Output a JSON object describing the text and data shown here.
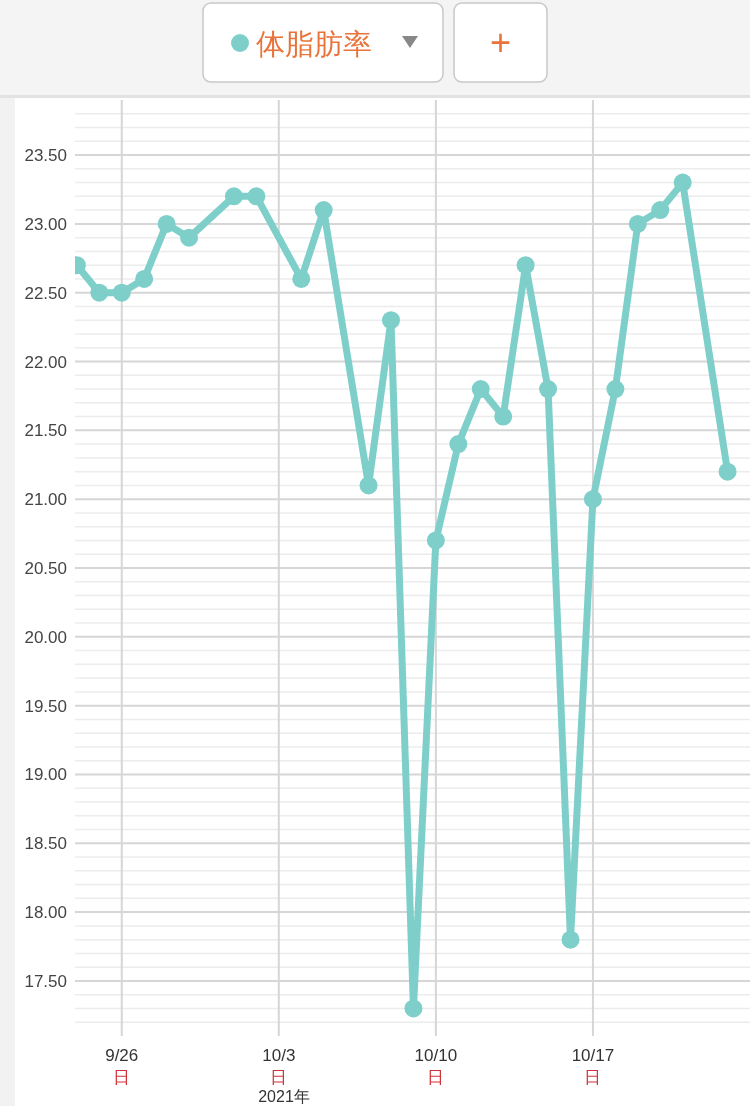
{
  "chart_data": {
    "type": "line",
    "legend": "top",
    "annotations": [
      "+"
    ],
    "xlabel": "2021年",
    "x": [
      "2021-09-24",
      "2021-09-25",
      "2021-09-26",
      "2021-09-27",
      "2021-09-28",
      "2021-09-29",
      "2021-10-01",
      "2021-10-02",
      "2021-10-04",
      "2021-10-05",
      "2021-10-07",
      "2021-10-08",
      "2021-10-09",
      "2021-10-10",
      "2021-10-11",
      "2021-10-12",
      "2021-10-13",
      "2021-10-14",
      "2021-10-15",
      "2021-10-16",
      "2021-10-17",
      "2021-10-18",
      "2021-10-19",
      "2021-10-20",
      "2021-10-21",
      "2021-10-23"
    ],
    "series": [
      {
        "name": "体脂肪率",
        "color": "#7ecfca",
        "values": [
          22.7,
          22.5,
          22.5,
          22.6,
          23.0,
          22.9,
          23.2,
          23.2,
          22.6,
          23.1,
          21.1,
          22.3,
          17.3,
          20.7,
          21.4,
          21.8,
          21.6,
          22.7,
          21.8,
          17.8,
          21.0,
          21.8,
          23.0,
          23.1,
          23.3,
          21.2
        ]
      }
    ],
    "marker": "circle",
    "grid": true,
    "xlim": [
      "2021-09-23T22:00",
      "2021-10-24T00:00"
    ],
    "xticks": [
      {
        "value": "2021-09-26",
        "label": "9/26\n日"
      },
      {
        "value": "2021-10-03",
        "label": "10/3\n日"
      },
      {
        "value": "2021-10-10",
        "label": "10/10\n日"
      },
      {
        "value": "2021-10-17",
        "label": "10/17\n日"
      }
    ],
    "ylim": [
      17.1,
      23.9
    ],
    "yticks": [
      {
        "value": 17.2,
        "label": null
      },
      {
        "value": 17.3,
        "label": null
      },
      {
        "value": 17.4,
        "label": null
      },
      {
        "value": 17.5,
        "label": "17.50"
      },
      {
        "value": 17.6,
        "label": null
      },
      {
        "value": 17.7,
        "label": null
      },
      {
        "value": 17.8,
        "label": null
      },
      {
        "value": 17.9,
        "label": null
      },
      {
        "value": 18.0,
        "label": "18.00"
      },
      {
        "value": 18.1,
        "label": null
      },
      {
        "value": 18.2,
        "label": null
      },
      {
        "value": 18.3,
        "label": null
      },
      {
        "value": 18.4,
        "label": null
      },
      {
        "value": 18.5,
        "label": "18.50"
      },
      {
        "value": 18.6,
        "label": null
      },
      {
        "value": 18.7,
        "label": null
      },
      {
        "value": 18.8,
        "label": null
      },
      {
        "value": 18.9,
        "label": null
      },
      {
        "value": 19.0,
        "label": "19.00"
      },
      {
        "value": 19.1,
        "label": null
      },
      {
        "value": 19.2,
        "label": null
      },
      {
        "value": 19.3,
        "label": null
      },
      {
        "value": 19.4,
        "label": null
      },
      {
        "value": 19.5,
        "label": "19.50"
      },
      {
        "value": 19.6,
        "label": null
      },
      {
        "value": 19.7,
        "label": null
      },
      {
        "value": 19.8,
        "label": null
      },
      {
        "value": 19.9,
        "label": null
      },
      {
        "value": 20.0,
        "label": "20.00"
      },
      {
        "value": 20.1,
        "label": null
      },
      {
        "value": 20.2,
        "label": null
      },
      {
        "value": 20.3,
        "label": null
      },
      {
        "value": 20.4,
        "label": null
      },
      {
        "value": 20.5,
        "label": "20.50"
      },
      {
        "value": 20.6,
        "label": null
      },
      {
        "value": 20.7,
        "label": null
      },
      {
        "value": 20.8,
        "label": null
      },
      {
        "value": 20.9,
        "label": null
      },
      {
        "value": 21.0,
        "label": "21.00"
      },
      {
        "value": 21.1,
        "label": null
      },
      {
        "value": 21.2,
        "label": null
      },
      {
        "value": 21.3,
        "label": null
      },
      {
        "value": 21.4,
        "label": null
      },
      {
        "value": 21.5,
        "label": "21.50"
      },
      {
        "value": 21.6,
        "label": null
      },
      {
        "value": 21.7,
        "label": null
      },
      {
        "value": 21.8,
        "label": null
      },
      {
        "value": 21.9,
        "label": null
      },
      {
        "value": 22.0,
        "label": "22.00"
      },
      {
        "value": 22.1,
        "label": null
      },
      {
        "value": 22.2,
        "label": null
      },
      {
        "value": 22.3,
        "label": null
      },
      {
        "value": 22.4,
        "label": null
      },
      {
        "value": 22.5,
        "label": "22.50"
      },
      {
        "value": 22.6,
        "label": null
      },
      {
        "value": 22.7,
        "label": null
      },
      {
        "value": 22.8,
        "label": null
      },
      {
        "value": 22.9,
        "label": null
      },
      {
        "value": 23.0,
        "label": "23.00"
      },
      {
        "value": 23.1,
        "label": null
      },
      {
        "value": 23.2,
        "label": null
      },
      {
        "value": 23.3,
        "label": null
      },
      {
        "value": 23.4,
        "label": null
      },
      {
        "value": 23.5,
        "label": "23.50"
      },
      {
        "value": 23.6,
        "label": null
      },
      {
        "value": 23.7,
        "label": null
      },
      {
        "value": 23.8,
        "label": null
      }
    ]
  }
}
